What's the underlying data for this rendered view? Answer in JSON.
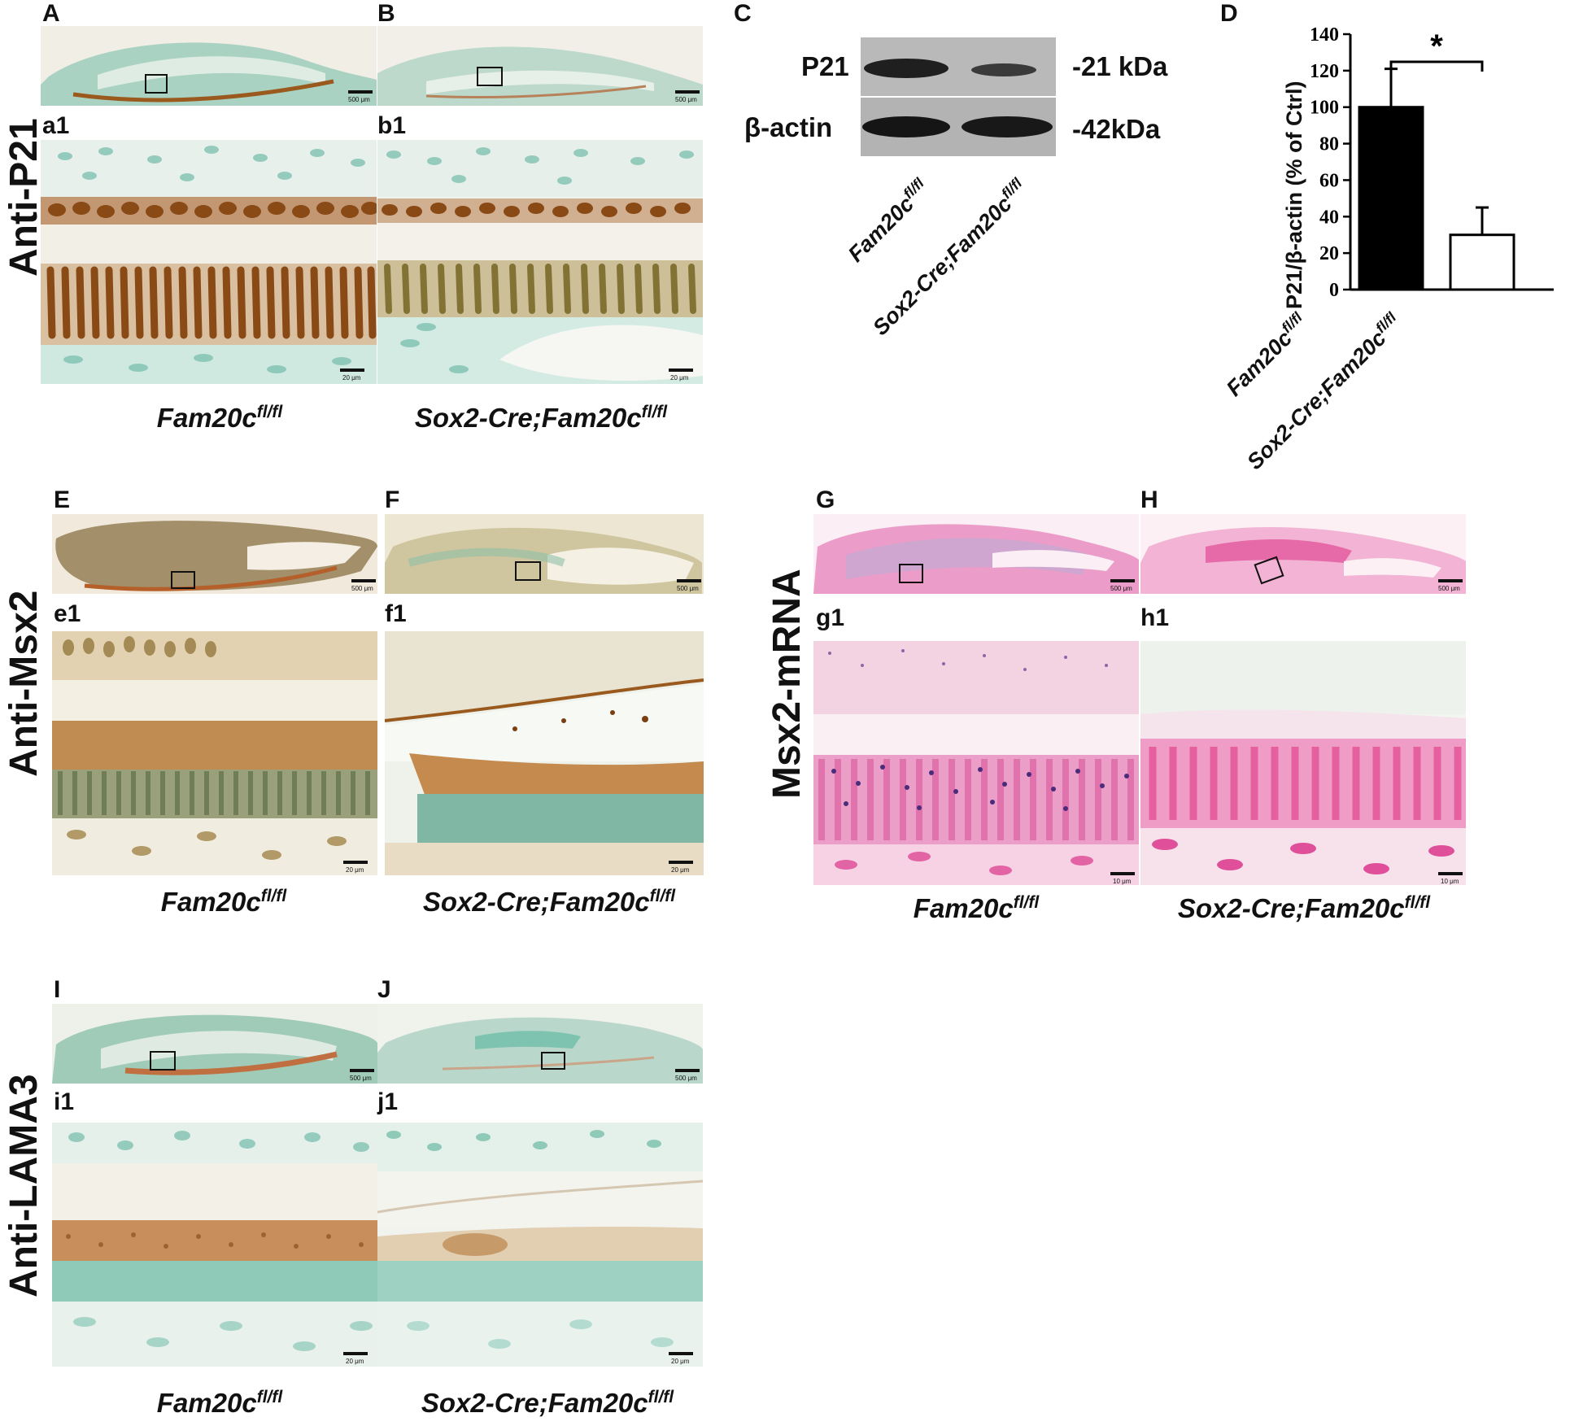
{
  "panels": {
    "A": "A",
    "B": "B",
    "C": "C",
    "D": "D",
    "a1": "a1",
    "b1": "b1",
    "E": "E",
    "F": "F",
    "G": "G",
    "H": "H",
    "e1": "e1",
    "f1": "f1",
    "g1": "g1",
    "h1": "h1",
    "I": "I",
    "J": "J",
    "i1": "i1",
    "j1": "j1"
  },
  "row_labels": {
    "p21": "Anti-P21",
    "msx2": "Anti-Msx2",
    "msx2_mrna": "Msx2-mRNA",
    "lama3": "Anti-LAMA3"
  },
  "genotypes": {
    "control_base": "Fam20c",
    "control_sup": "fl/fl",
    "mutant_base": "Sox2-Cre;Fam20c",
    "mutant_sup": "fl/fl"
  },
  "scale_bars": {
    "s500": "500 μm",
    "s20": "20 μm",
    "s10": "10 μm"
  },
  "western_blot": {
    "bands": [
      {
        "name": "P21",
        "size": "-21 kDa"
      },
      {
        "name": "β-actin",
        "size": "-42kDa"
      }
    ]
  },
  "colors": {
    "dab_brown": "#9a5a1e",
    "methyl_green": "#7fc6b6",
    "eosin_pink": "#e88cc0",
    "nbt_purple": "#5b3c8c"
  },
  "chart_data": {
    "type": "bar",
    "categories": [
      "Fam20c fl/fl",
      "Sox2-Cre;Fam20c fl/fl"
    ],
    "values": [
      100,
      30
    ],
    "errors": [
      21,
      15
    ],
    "bar_fill": [
      "#000000",
      "#ffffff"
    ],
    "ylabel": "P21/β-actin (% of Ctrl)",
    "ylim": [
      0,
      140
    ],
    "yticks": [
      0,
      20,
      40,
      60,
      80,
      100,
      120,
      140
    ],
    "significance": "*",
    "grid": false
  }
}
